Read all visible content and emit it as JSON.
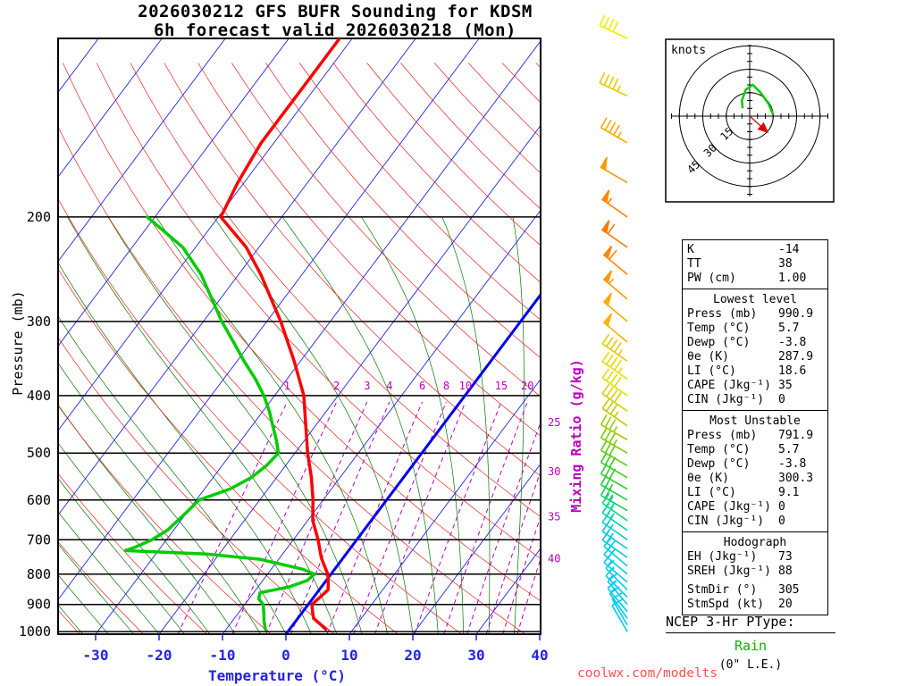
{
  "title": {
    "line1": "2026030212 GFS BUFR Sounding for KDSM",
    "line2": "6h forecast valid 2026030218 (Mon)"
  },
  "axes": {
    "pressure_label": "Pressure (mb)",
    "pressure_ticks": [
      200,
      300,
      400,
      500,
      600,
      700,
      800,
      900,
      1000
    ],
    "temperature_label": "Temperature (°C)",
    "temperature_ticks": [
      -30,
      -20,
      -10,
      0,
      10,
      20,
      30,
      40
    ],
    "mixing_ratio_label": "Mixing Ratio (g/kg)",
    "mixing_ratio_values": [
      1,
      2,
      3,
      4,
      6,
      8,
      10,
      15,
      20,
      25,
      30,
      35,
      40
    ]
  },
  "chart_data": {
    "type": "line",
    "title": "Skew-T log-P sounding",
    "xlabel": "Temperature (°C)",
    "ylabel": "Pressure (mb)",
    "pressure_range_mb": [
      100,
      1010
    ],
    "temperature_profile": {
      "pressure_mb": [
        990.9,
        975,
        950,
        925,
        900,
        875,
        850,
        825,
        800,
        775,
        750,
        700,
        650,
        600,
        550,
        500,
        450,
        400,
        350,
        300,
        250,
        225,
        200,
        175,
        150,
        125,
        100
      ],
      "temp_c": [
        5.7,
        4.5,
        2.5,
        1.5,
        0.6,
        1.0,
        1.4,
        0.5,
        -0.5,
        -2.0,
        -3.5,
        -6.1,
        -9.2,
        -11.6,
        -14.5,
        -18.0,
        -21.5,
        -25.4,
        -31.0,
        -37.8,
        -46.5,
        -52.0,
        -59.6,
        -61.0,
        -62.0,
        -62.0,
        -62.0
      ]
    },
    "dewpoint_profile": {
      "pressure_mb": [
        990.9,
        960,
        930,
        900,
        880,
        860,
        840,
        820,
        800,
        785,
        770,
        755,
        740,
        730,
        720,
        700,
        675,
        650,
        625,
        600,
        575,
        550,
        525,
        500,
        475,
        450,
        425,
        400,
        375,
        350,
        325,
        300,
        275,
        250,
        225,
        200
      ],
      "temp_c": [
        -3.8,
        -5.0,
        -6.0,
        -7.1,
        -8.5,
        -9.0,
        -5.0,
        -3.0,
        -2.6,
        -5.0,
        -9.0,
        -13.0,
        -22.0,
        -35.2,
        -34.0,
        -32.3,
        -31.0,
        -30.5,
        -30.0,
        -29.6,
        -26.0,
        -24.0,
        -23.0,
        -22.6,
        -24.5,
        -26.7,
        -29.0,
        -31.7,
        -35.0,
        -38.9,
        -42.8,
        -47.1,
        -51.3,
        -55.9,
        -62.0,
        -71.2
      ]
    },
    "wind_barb_columns": [
      "pressure_mb",
      "dir_deg",
      "speed_kt",
      "color"
    ],
    "wind_barbs": [
      [
        1000,
        330,
        10,
        "#00ccee"
      ],
      [
        975,
        330,
        10,
        "#00ccee"
      ],
      [
        950,
        325,
        10,
        "#00ccee"
      ],
      [
        925,
        320,
        15,
        "#00ccee"
      ],
      [
        900,
        320,
        15,
        "#00ccee"
      ],
      [
        875,
        315,
        15,
        "#00ccee"
      ],
      [
        850,
        315,
        15,
        "#00ccee"
      ],
      [
        825,
        310,
        15,
        "#00ccee"
      ],
      [
        800,
        310,
        20,
        "#00ccee"
      ],
      [
        775,
        310,
        20,
        "#00ccee"
      ],
      [
        750,
        305,
        20,
        "#00c8e0"
      ],
      [
        725,
        305,
        20,
        "#00c8e0"
      ],
      [
        700,
        305,
        20,
        "#00d0c0"
      ],
      [
        675,
        305,
        25,
        "#00d4a0"
      ],
      [
        650,
        305,
        25,
        "#00d880"
      ],
      [
        625,
        300,
        25,
        "#10d060"
      ],
      [
        600,
        300,
        25,
        "#20cc40"
      ],
      [
        575,
        300,
        30,
        "#30cc30"
      ],
      [
        550,
        300,
        30,
        "#40cc20"
      ],
      [
        525,
        300,
        30,
        "#60cc10"
      ],
      [
        500,
        300,
        35,
        "#80cc00"
      ],
      [
        475,
        300,
        35,
        "#a0cc00"
      ],
      [
        450,
        305,
        35,
        "#c0cc00"
      ],
      [
        425,
        305,
        40,
        "#d4d400"
      ],
      [
        400,
        305,
        40,
        "#e0e000"
      ],
      [
        375,
        305,
        45,
        "#e8dc00"
      ],
      [
        350,
        305,
        45,
        "#eec800"
      ],
      [
        325,
        310,
        50,
        "#f4b400"
      ],
      [
        300,
        310,
        50,
        "#ffaa00"
      ],
      [
        275,
        310,
        55,
        "#ff9900"
      ],
      [
        250,
        310,
        60,
        "#ff8800"
      ],
      [
        225,
        305,
        60,
        "#ff7700"
      ],
      [
        200,
        305,
        55,
        "#ff8800"
      ],
      [
        175,
        300,
        50,
        "#ff9900"
      ],
      [
        150,
        300,
        45,
        "#ffaa00"
      ],
      [
        125,
        295,
        45,
        "#e8cc00"
      ],
      [
        100,
        295,
        40,
        "#eeee00"
      ]
    ],
    "hodograph_trace_kt": [
      [
        15,
        1
      ],
      [
        12,
        8
      ],
      [
        7,
        15
      ],
      [
        2,
        20
      ],
      [
        -2.5,
        17
      ],
      [
        -5,
        10
      ],
      [
        -4.5,
        5
      ]
    ],
    "storm_motion_kt": [
      10,
      -9
    ]
  },
  "hodograph": {
    "unit_label": "knots",
    "rings_kt": [
      15,
      30,
      45
    ]
  },
  "indices": {
    "summary": [
      {
        "label": "K",
        "value": "-14"
      },
      {
        "label": "TT",
        "value": "38"
      },
      {
        "label": "PW (cm)",
        "value": "1.00"
      }
    ],
    "lowest_level": {
      "header": "Lowest level",
      "rows": [
        {
          "label": "Press (mb)",
          "value": "990.9"
        },
        {
          "label": "Temp (°C)",
          "value": "5.7"
        },
        {
          "label": "Dewp (°C)",
          "value": "-3.8"
        },
        {
          "label": "θe (K)",
          "value": "287.9"
        },
        {
          "label": "LI (°C)",
          "value": "18.6"
        },
        {
          "label": "CAPE (Jkg⁻¹)",
          "value": "35"
        },
        {
          "label": "CIN (Jkg⁻¹)",
          "value": "0"
        }
      ]
    },
    "most_unstable": {
      "header": "Most Unstable",
      "rows": [
        {
          "label": "Press (mb)",
          "value": "791.9"
        },
        {
          "label": "Temp (°C)",
          "value": "5.7"
        },
        {
          "label": "Dewp (°C)",
          "value": "-3.8"
        },
        {
          "label": "θe (K)",
          "value": "300.3"
        },
        {
          "label": "LI (°C)",
          "value": "9.1"
        },
        {
          "label": "CAPE (Jkg⁻¹)",
          "value": "0"
        },
        {
          "label": "CIN (Jkg⁻¹)",
          "value": "0"
        }
      ]
    },
    "hodograph_section": {
      "header": "Hodograph",
      "rows": [
        {
          "label": "EH (Jkg⁻¹)",
          "value": "73"
        },
        {
          "label": "SREH (Jkg⁻¹)",
          "value": "88"
        },
        {
          "label": "StmDir (°)",
          "value": "305"
        },
        {
          "label": "StmSpd (kt)",
          "value": "20"
        }
      ]
    }
  },
  "ptype": {
    "title": "NCEP 3-Hr PType:",
    "value": "Rain",
    "note": "(0\" L.E.)"
  },
  "watermark": "coolwx.com/modelts",
  "colors": {
    "temperature": "#ff0000",
    "dewpoint": "#00cc00",
    "isotherm": "#2222ee",
    "zero_isotherm": "#0000ee",
    "dry_adiabat": "#ee2222",
    "moist_adiabat": "#007700",
    "mixing_ratio": "#bb00bb",
    "pressure_line": "#000000",
    "axis_temp": "#2222ee",
    "hodo_trace": "#00cc00",
    "storm_motion": "#dd0000"
  }
}
